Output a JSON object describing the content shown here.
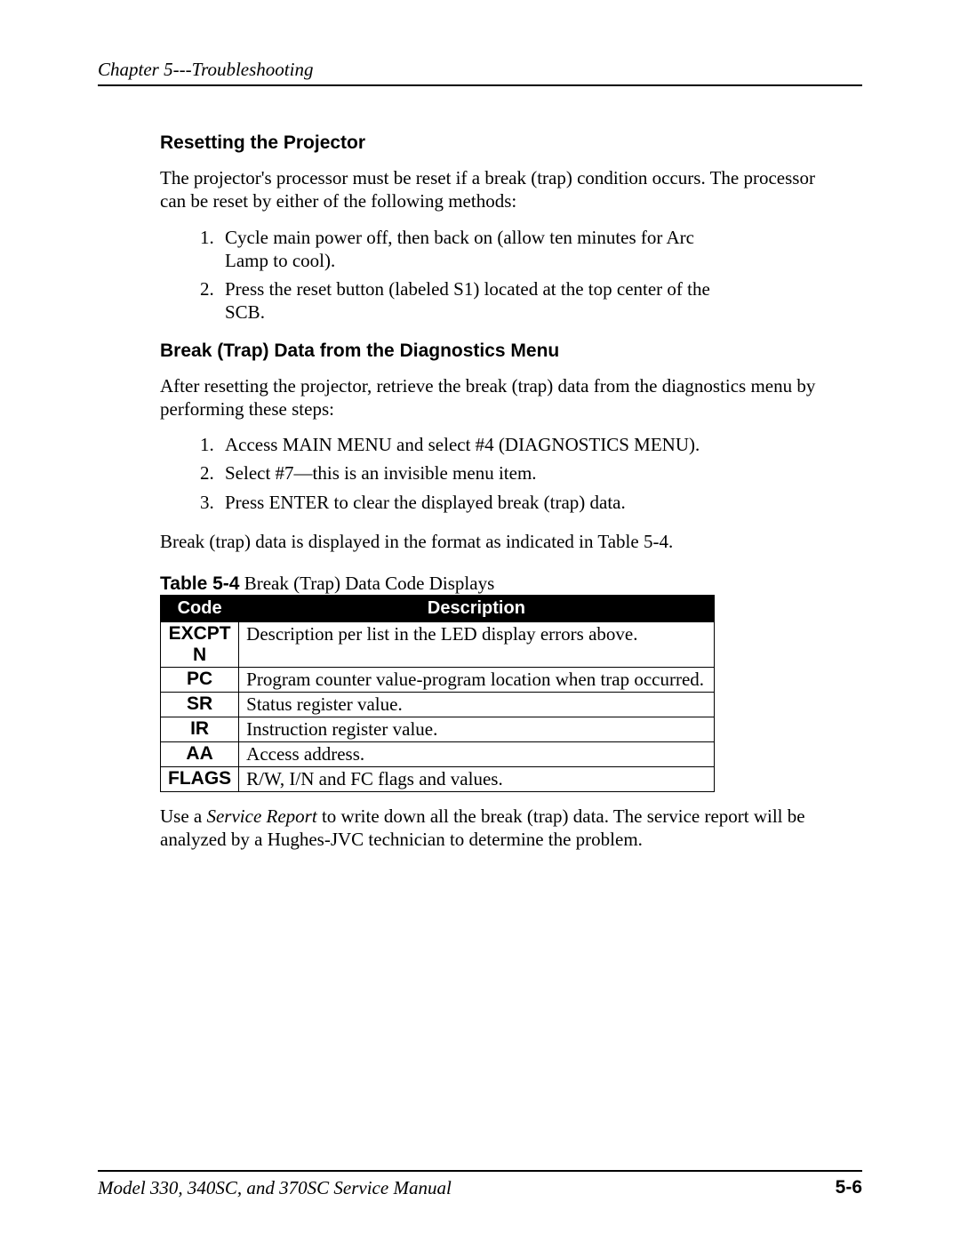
{
  "header": {
    "text": "Chapter 5---Troubleshooting"
  },
  "section1": {
    "heading": "Resetting the Projector",
    "intro": "The projector's processor must be reset if a break (trap) condition occurs. The processor can be reset by either of the following methods:",
    "items": [
      {
        "num": "1.",
        "text": "Cycle main power off, then back on (allow ten minutes for Arc Lamp to cool)."
      },
      {
        "num": "2.",
        "text": "Press the reset button (labeled S1) located at the top center of the SCB."
      }
    ]
  },
  "section2": {
    "heading": "Break (Trap) Data from the Diagnostics Menu",
    "intro": "After resetting the projector, retrieve the break (trap) data from the diagnostics menu by performing these steps:",
    "items": [
      {
        "num": "1.",
        "text": "Access MAIN MENU and select #4 (DIAGNOSTICS MENU)."
      },
      {
        "num": "2.",
        "text": "Select #7—this is an invisible menu item."
      },
      {
        "num": "3.",
        "text": "Press ENTER to clear the displayed break (trap) data."
      }
    ],
    "after_list": "Break (trap) data is displayed in the format as indicated in Table 5-4."
  },
  "table": {
    "caption_bold": "Table 5-4",
    "caption_rest": "  Break (Trap) Data Code Displays",
    "headers": {
      "col1": "Code",
      "col2": "Description"
    },
    "rows": [
      {
        "code": "EXCPTN",
        "desc": "Description per list in the LED display errors above."
      },
      {
        "code": "PC",
        "desc": "Program counter value-program location when trap occurred."
      },
      {
        "code": "SR",
        "desc": "Status register value."
      },
      {
        "code": "IR",
        "desc": "Instruction register value."
      },
      {
        "code": "AA",
        "desc": "Access address."
      },
      {
        "code": "FLAGS",
        "desc": "R/W, I/N and FC flags and values."
      }
    ]
  },
  "closing": {
    "pre": "Use a ",
    "italic": "Service Report",
    "post": " to write down all the break (trap) data. The service report will be analyzed by a Hughes-JVC technician to determine the problem."
  },
  "footer": {
    "left": "Model 330, 340SC, and 370SC Service Manual",
    "right": "5-6"
  }
}
